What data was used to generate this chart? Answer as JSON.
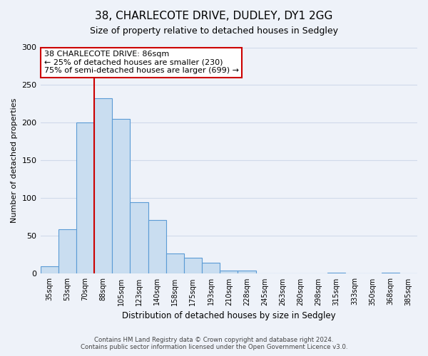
{
  "title": "38, CHARLECOTE DRIVE, DUDLEY, DY1 2GG",
  "subtitle": "Size of property relative to detached houses in Sedgley",
  "xlabel": "Distribution of detached houses by size in Sedgley",
  "ylabel": "Number of detached properties",
  "categories": [
    "35sqm",
    "53sqm",
    "70sqm",
    "88sqm",
    "105sqm",
    "123sqm",
    "140sqm",
    "158sqm",
    "175sqm",
    "193sqm",
    "210sqm",
    "228sqm",
    "245sqm",
    "263sqm",
    "280sqm",
    "298sqm",
    "315sqm",
    "333sqm",
    "350sqm",
    "368sqm",
    "385sqm"
  ],
  "values": [
    10,
    59,
    200,
    233,
    205,
    95,
    71,
    27,
    21,
    15,
    4,
    4,
    0,
    0,
    0,
    0,
    1,
    0,
    0,
    1,
    0
  ],
  "bar_color": "#c9ddf0",
  "bar_edge_color": "#5b9bd5",
  "property_line_label": "38 CHARLECOTE DRIVE: 86sqm",
  "annotation_line1": "← 25% of detached houses are smaller (230)",
  "annotation_line2": "75% of semi-detached houses are larger (699) →",
  "annotation_box_color": "#ffffff",
  "annotation_box_edge_color": "#cc0000",
  "property_line_color": "#cc0000",
  "ylim": [
    0,
    300
  ],
  "yticks": [
    0,
    50,
    100,
    150,
    200,
    250,
    300
  ],
  "background_color": "#eef2f9",
  "grid_color": "#d0daea",
  "footer1": "Contains HM Land Registry data © Crown copyright and database right 2024.",
  "footer2": "Contains public sector information licensed under the Open Government Licence v3.0."
}
